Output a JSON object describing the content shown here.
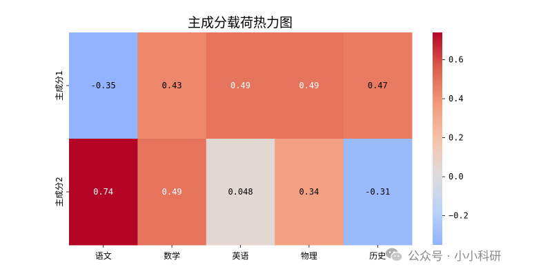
{
  "chart_data": {
    "type": "heatmap",
    "title": "主成分载荷热力图",
    "rows": [
      "主成分1",
      "主成分2"
    ],
    "columns": [
      "语文",
      "数学",
      "英语",
      "物理",
      "历史"
    ],
    "values": [
      [
        -0.35,
        0.43,
        0.49,
        0.49,
        0.47
      ],
      [
        0.74,
        0.49,
        0.048,
        0.34,
        -0.31
      ]
    ],
    "value_labels": [
      [
        "-0.35",
        "0.43",
        "0.49",
        "0.49",
        "0.47"
      ],
      [
        "0.74",
        "0.49",
        "0.048",
        "0.34",
        "-0.31"
      ]
    ],
    "colormap": "coolwarm",
    "color_center": 0,
    "vmin": -0.35,
    "vmax": 0.74,
    "colorbar": {
      "ticks": [
        -0.2,
        0.0,
        0.2,
        0.4,
        0.6
      ],
      "tick_labels": [
        "−0.2",
        "0.0",
        "0.2",
        "0.4",
        "0.6"
      ]
    }
  },
  "watermark": {
    "text": "公众号 · 小小科研",
    "icon": "wechat-icon"
  }
}
